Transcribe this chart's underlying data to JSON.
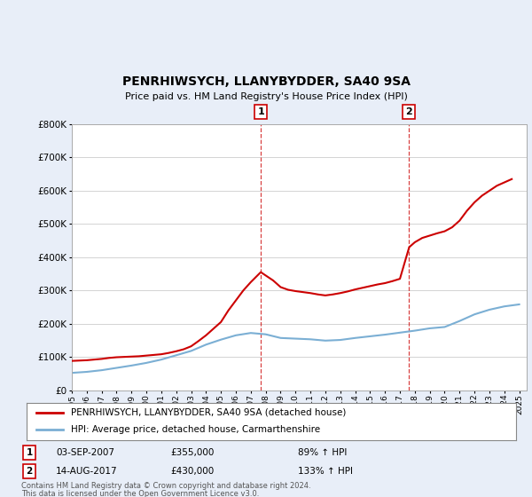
{
  "title": "PENRHIWSYCH, LLANYBYDDER, SA40 9SA",
  "subtitle": "Price paid vs. HM Land Registry's House Price Index (HPI)",
  "ylim": [
    0,
    800000
  ],
  "xlim_start": 1995.0,
  "xlim_end": 2025.5,
  "background_color": "#e8eef8",
  "plot_bg_color": "#ffffff",
  "marker1_x": 2007.67,
  "marker1_label": "1",
  "marker1_date": "03-SEP-2007",
  "marker1_price": "£355,000",
  "marker1_pct": "89% ↑ HPI",
  "marker2_x": 2017.62,
  "marker2_label": "2",
  "marker2_date": "14-AUG-2017",
  "marker2_price": "£430,000",
  "marker2_pct": "133% ↑ HPI",
  "legend_line1": "PENRHIWSYCH, LLANYBYDDER, SA40 9SA (detached house)",
  "legend_line2": "HPI: Average price, detached house, Carmarthenshire",
  "footer1": "Contains HM Land Registry data © Crown copyright and database right 2024.",
  "footer2": "This data is licensed under the Open Government Licence v3.0.",
  "red_color": "#cc0000",
  "blue_color": "#7bafd4",
  "red_x": [
    1995.0,
    1995.5,
    1996.0,
    1996.5,
    1997.0,
    1997.5,
    1998.0,
    1998.5,
    1999.0,
    1999.5,
    2000.0,
    2000.5,
    2001.0,
    2001.5,
    2002.0,
    2002.5,
    2003.0,
    2003.5,
    2004.0,
    2004.5,
    2005.0,
    2005.5,
    2006.0,
    2006.5,
    2007.0,
    2007.67,
    2008.0,
    2008.5,
    2009.0,
    2009.5,
    2010.0,
    2010.5,
    2011.0,
    2011.5,
    2012.0,
    2012.5,
    2013.0,
    2013.5,
    2014.0,
    2014.5,
    2015.0,
    2015.5,
    2016.0,
    2016.5,
    2017.0,
    2017.62,
    2018.0,
    2018.5,
    2019.0,
    2019.5,
    2020.0,
    2020.5,
    2021.0,
    2021.5,
    2022.0,
    2022.5,
    2023.0,
    2023.5,
    2024.0,
    2024.5
  ],
  "red_y": [
    88000,
    89000,
    90000,
    92000,
    94000,
    97000,
    99000,
    100000,
    101000,
    102000,
    104000,
    106000,
    108000,
    112000,
    117000,
    123000,
    132000,
    148000,
    165000,
    185000,
    205000,
    240000,
    270000,
    300000,
    325000,
    355000,
    345000,
    330000,
    310000,
    302000,
    298000,
    295000,
    292000,
    288000,
    285000,
    288000,
    292000,
    297000,
    303000,
    308000,
    313000,
    318000,
    322000,
    328000,
    335000,
    430000,
    445000,
    458000,
    465000,
    472000,
    478000,
    490000,
    510000,
    540000,
    565000,
    585000,
    600000,
    615000,
    625000,
    635000
  ],
  "blue_x": [
    1995.0,
    1996.0,
    1997.0,
    1998.0,
    1999.0,
    2000.0,
    2001.0,
    2002.0,
    2003.0,
    2004.0,
    2005.0,
    2006.0,
    2007.0,
    2008.0,
    2009.0,
    2010.0,
    2011.0,
    2012.0,
    2013.0,
    2014.0,
    2015.0,
    2016.0,
    2017.0,
    2018.0,
    2019.0,
    2020.0,
    2021.0,
    2022.0,
    2023.0,
    2024.0,
    2025.0
  ],
  "blue_y": [
    52000,
    55000,
    60000,
    67000,
    74000,
    82000,
    92000,
    105000,
    118000,
    137000,
    152000,
    165000,
    172000,
    168000,
    157000,
    155000,
    153000,
    149000,
    151000,
    157000,
    162000,
    167000,
    173000,
    179000,
    186000,
    190000,
    208000,
    228000,
    242000,
    252000,
    258000
  ]
}
